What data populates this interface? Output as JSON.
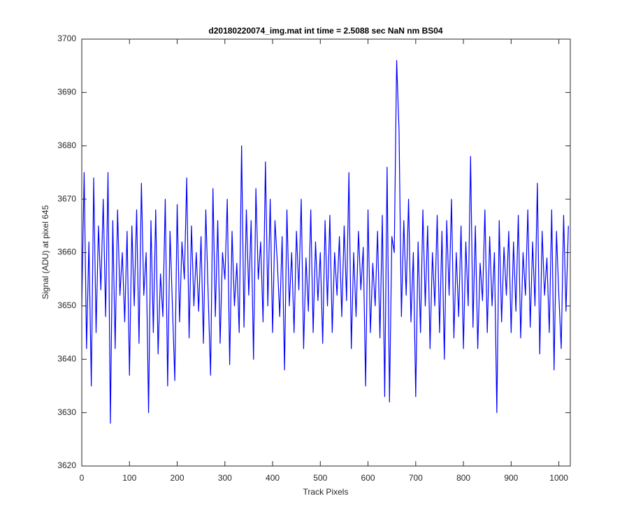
{
  "chart_data": {
    "type": "line",
    "title": "d20180220074_img.mat int time = 2.5088 sec  NaN nm BS04",
    "xlabel": "Track Pixels",
    "ylabel": "Signal (ADU) at pixel 645",
    "xlim": [
      0,
      1024
    ],
    "ylim": [
      3620,
      3700
    ],
    "xticks": [
      0,
      100,
      200,
      300,
      400,
      500,
      600,
      700,
      800,
      900,
      1000
    ],
    "yticks": [
      3620,
      3630,
      3640,
      3650,
      3660,
      3670,
      3680,
      3690,
      3700
    ],
    "grid": false,
    "x": [
      0,
      5,
      10,
      15,
      20,
      25,
      30,
      35,
      40,
      45,
      50,
      55,
      60,
      65,
      70,
      75,
      80,
      85,
      90,
      95,
      100,
      105,
      110,
      115,
      120,
      125,
      130,
      135,
      140,
      145,
      150,
      155,
      160,
      165,
      170,
      175,
      180,
      185,
      190,
      195,
      200,
      205,
      210,
      215,
      220,
      225,
      230,
      235,
      240,
      245,
      250,
      255,
      260,
      265,
      270,
      275,
      280,
      285,
      290,
      295,
      300,
      305,
      310,
      315,
      320,
      325,
      330,
      335,
      340,
      345,
      350,
      355,
      360,
      365,
      370,
      375,
      380,
      385,
      390,
      395,
      400,
      405,
      410,
      415,
      420,
      425,
      430,
      435,
      440,
      445,
      450,
      455,
      460,
      465,
      470,
      475,
      480,
      485,
      490,
      495,
      500,
      505,
      510,
      515,
      520,
      525,
      530,
      535,
      540,
      545,
      550,
      555,
      560,
      565,
      570,
      575,
      580,
      585,
      590,
      595,
      600,
      605,
      610,
      615,
      620,
      625,
      630,
      635,
      640,
      645,
      650,
      655,
      660,
      665,
      670,
      675,
      680,
      685,
      690,
      695,
      700,
      705,
      710,
      715,
      720,
      725,
      730,
      735,
      740,
      745,
      750,
      755,
      760,
      765,
      770,
      775,
      780,
      785,
      790,
      795,
      800,
      805,
      810,
      815,
      820,
      825,
      830,
      835,
      840,
      845,
      850,
      855,
      860,
      865,
      870,
      875,
      880,
      885,
      890,
      895,
      900,
      905,
      910,
      915,
      920,
      925,
      930,
      935,
      940,
      945,
      950,
      955,
      960,
      965,
      970,
      975,
      980,
      985,
      990,
      995,
      1000,
      1005,
      1010,
      1015,
      1020
    ],
    "series": [
      {
        "name": "Signal",
        "color": "#0000ff",
        "values": [
          3650,
          3675,
          3642,
          3662,
          3635,
          3674,
          3645,
          3665,
          3653,
          3670,
          3648,
          3675,
          3628,
          3666,
          3642,
          3668,
          3652,
          3660,
          3647,
          3664,
          3637,
          3665,
          3650,
          3668,
          3643,
          3673,
          3652,
          3660,
          3630,
          3666,
          3645,
          3668,
          3641,
          3656,
          3648,
          3670,
          3635,
          3664,
          3650,
          3636,
          3669,
          3647,
          3662,
          3655,
          3674,
          3644,
          3665,
          3650,
          3660,
          3649,
          3663,
          3643,
          3668,
          3652,
          3637,
          3672,
          3648,
          3666,
          3643,
          3660,
          3655,
          3670,
          3639,
          3664,
          3650,
          3658,
          3645,
          3680,
          3646,
          3668,
          3652,
          3666,
          3640,
          3672,
          3655,
          3662,
          3647,
          3677,
          3650,
          3670,
          3645,
          3666,
          3658,
          3648,
          3663,
          3638,
          3668,
          3650,
          3660,
          3645,
          3664,
          3653,
          3670,
          3642,
          3659,
          3649,
          3668,
          3645,
          3662,
          3651,
          3660,
          3643,
          3666,
          3650,
          3667,
          3645,
          3660,
          3652,
          3663,
          3648,
          3665,
          3651,
          3675,
          3642,
          3660,
          3648,
          3664,
          3653,
          3661,
          3635,
          3668,
          3645,
          3658,
          3650,
          3664,
          3644,
          3667,
          3633,
          3676,
          3632,
          3663,
          3660,
          3696,
          3683,
          3648,
          3666,
          3652,
          3670,
          3647,
          3660,
          3633,
          3662,
          3645,
          3668,
          3650,
          3665,
          3642,
          3660,
          3650,
          3667,
          3645,
          3664,
          3640,
          3666,
          3652,
          3670,
          3644,
          3660,
          3648,
          3665,
          3642,
          3662,
          3650,
          3678,
          3646,
          3665,
          3642,
          3658,
          3651,
          3668,
          3645,
          3663,
          3650,
          3660,
          3630,
          3666,
          3647,
          3661,
          3652,
          3664,
          3645,
          3662,
          3649,
          3667,
          3644,
          3660,
          3652,
          3668,
          3646,
          3662,
          3650,
          3673,
          3641,
          3664,
          3652,
          3659,
          3645,
          3668,
          3638,
          3664,
          3652,
          3642,
          3667,
          3649,
          3665
        ]
      }
    ]
  }
}
